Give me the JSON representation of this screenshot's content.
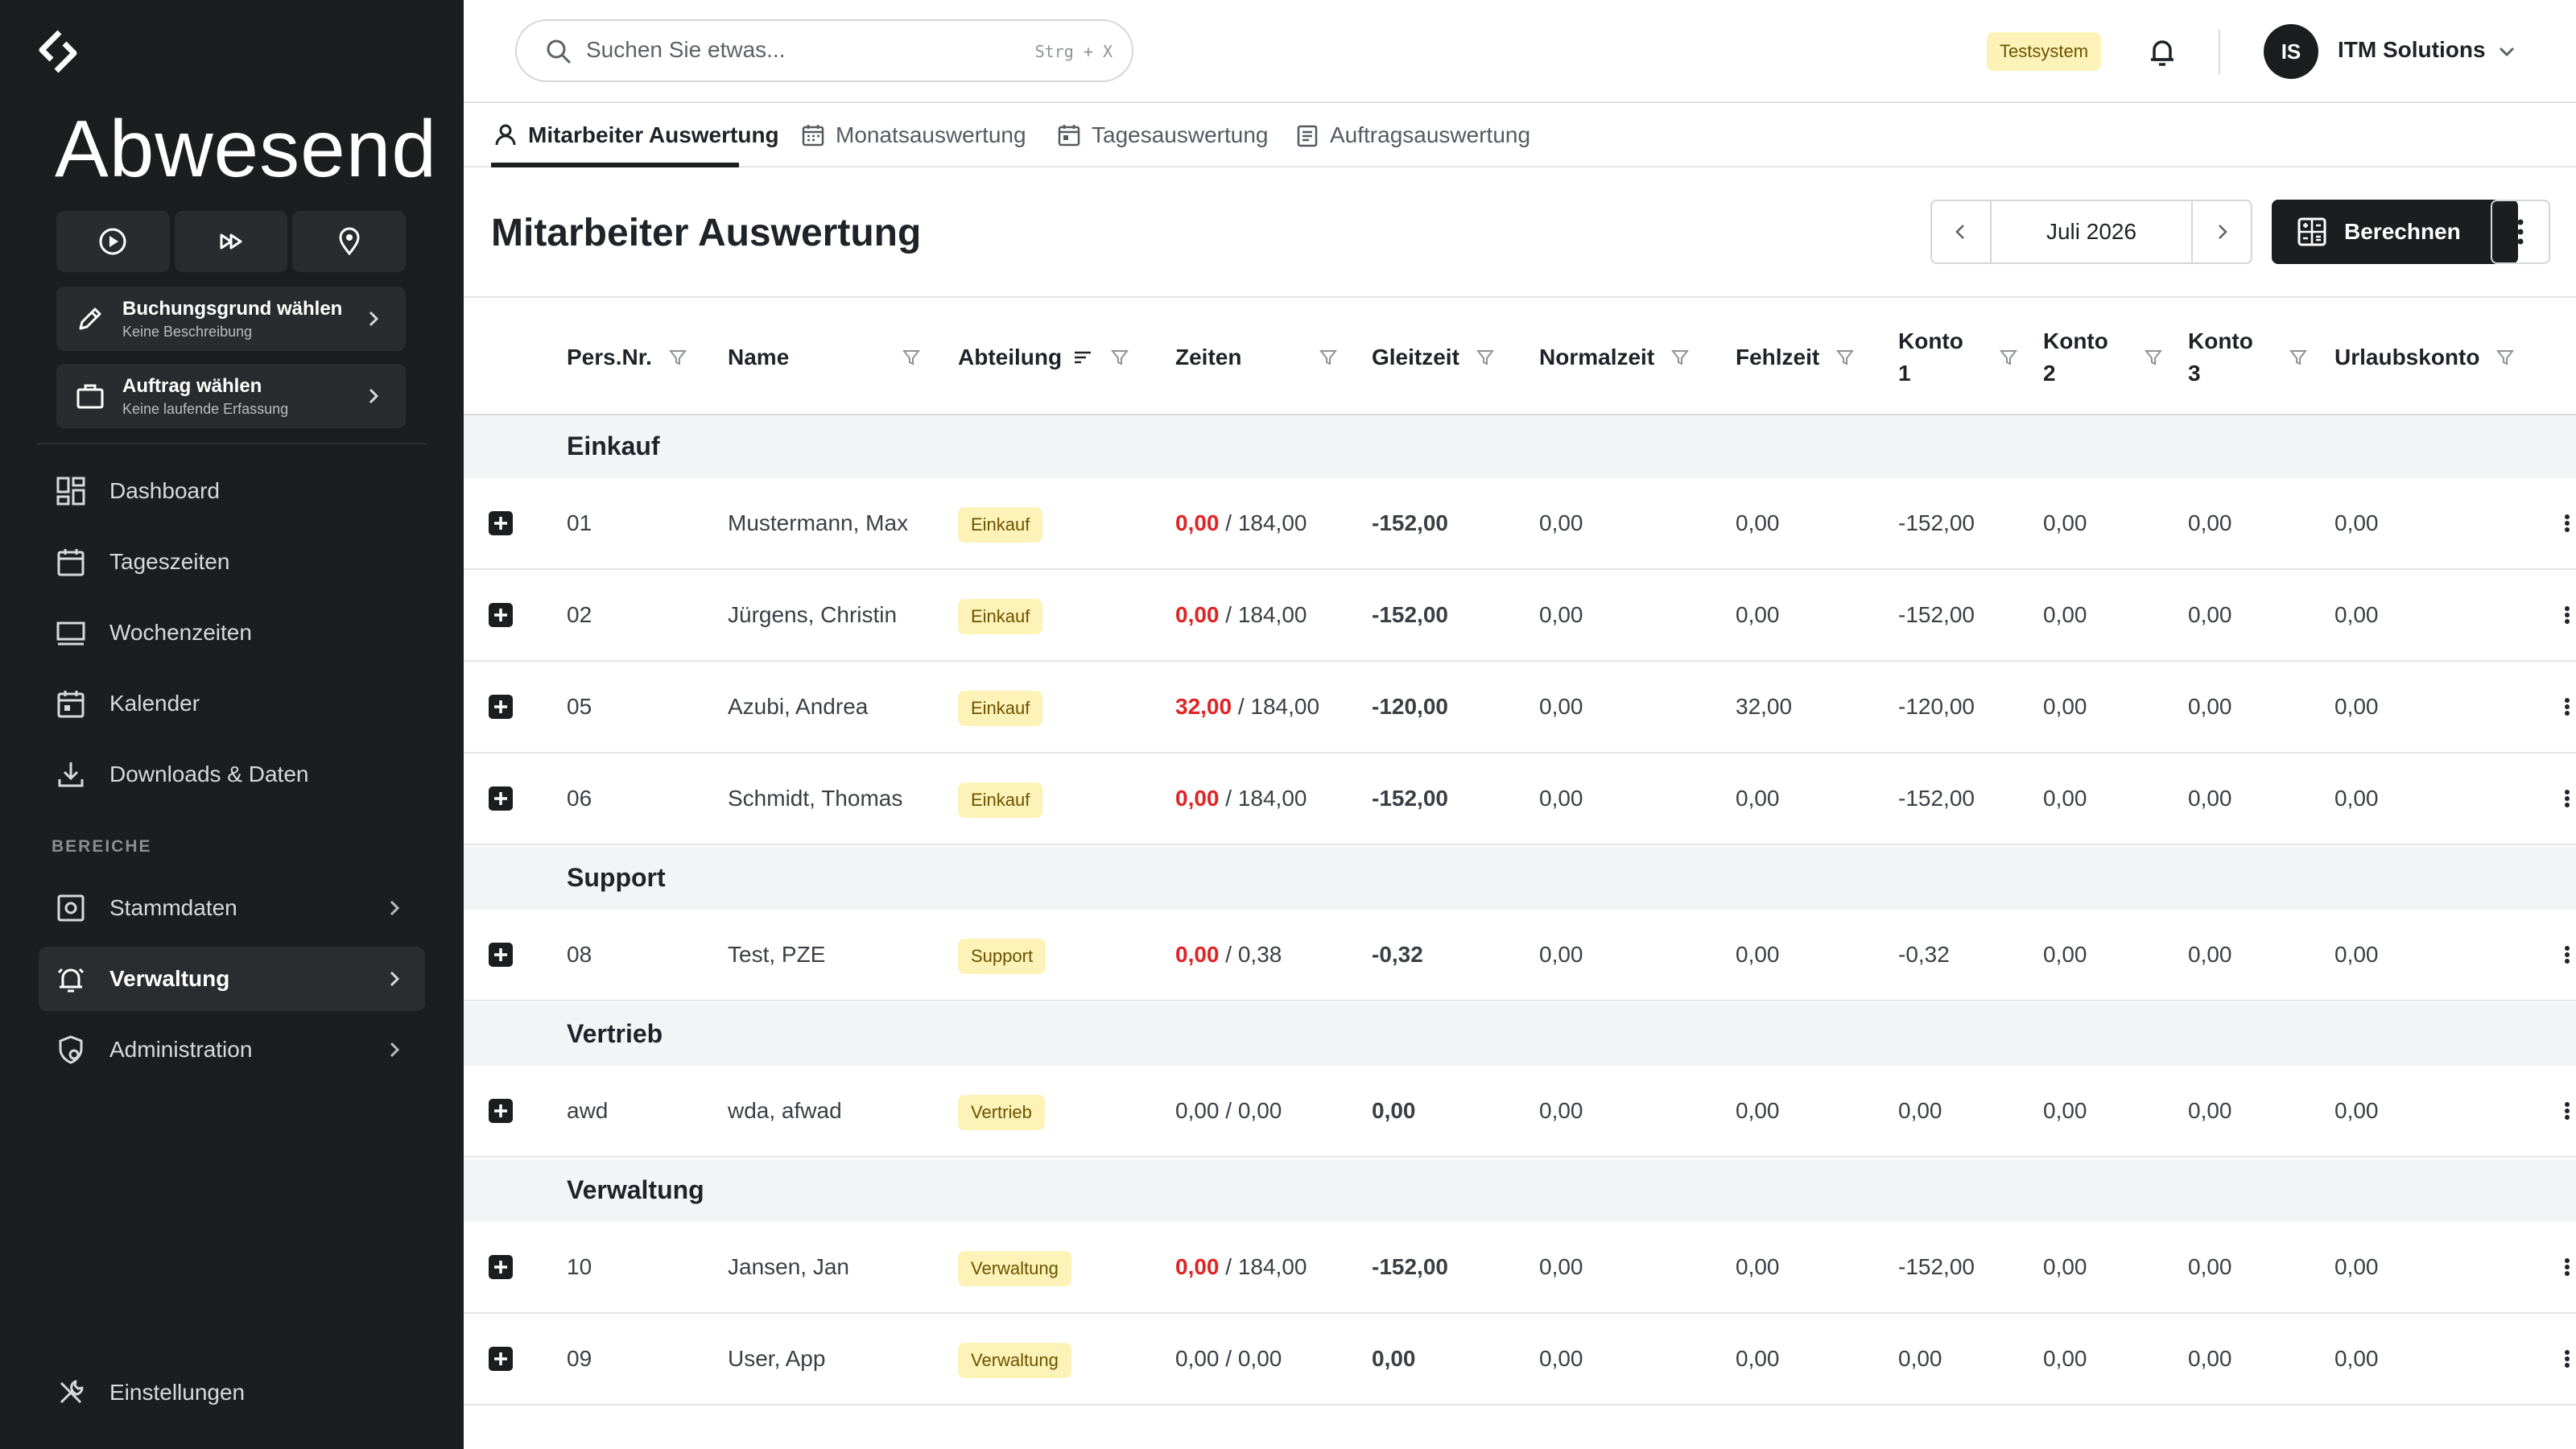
{
  "app": {
    "brand": "Abwesend",
    "quick_actions": [
      "play-icon",
      "fast-forward-icon",
      "location-pin-icon"
    ],
    "booking_reason": {
      "title": "Buchungsgrund wählen",
      "subtitle": "Keine Beschreibung"
    },
    "order": {
      "title": "Auftrag wählen",
      "subtitle": "Keine laufende Erfassung"
    }
  },
  "sidebar": {
    "items": [
      {
        "label": "Dashboard",
        "icon": "dashboard-icon"
      },
      {
        "label": "Tageszeiten",
        "icon": "calendar-icon"
      },
      {
        "label": "Wochenzeiten",
        "icon": "week-icon"
      },
      {
        "label": "Kalender",
        "icon": "calendar-event-icon"
      },
      {
        "label": "Downloads & Daten",
        "icon": "download-icon"
      }
    ],
    "section_label": "BEREICHE",
    "sections": [
      {
        "label": "Stammdaten",
        "icon": "settings-box-icon",
        "active": false
      },
      {
        "label": "Verwaltung",
        "icon": "bell-ring-icon",
        "active": true
      },
      {
        "label": "Administration",
        "icon": "shield-gear-icon",
        "active": false
      }
    ],
    "settings_label": "Einstellungen"
  },
  "topbar": {
    "search_placeholder": "Suchen Sie etwas...",
    "search_shortcut": "Strg + X",
    "env_badge": "Testsystem",
    "avatar_initials": "IS",
    "account_name": "ITM Solutions"
  },
  "tabs": [
    {
      "label": "Mitarbeiter Auswertung",
      "active": true
    },
    {
      "label": "Monatsauswertung",
      "active": false
    },
    {
      "label": "Tagesauswertung",
      "active": false
    },
    {
      "label": "Auftragsauswertung",
      "active": false
    }
  ],
  "page": {
    "title": "Mitarbeiter Auswertung",
    "month": "Juli 2026",
    "calculate_label": "Berechnen"
  },
  "table": {
    "columns": {
      "pers_nr": "Pers.Nr.",
      "name": "Name",
      "abteilung": "Abteilung",
      "zeiten": "Zeiten",
      "gleitzeit": "Gleitzeit",
      "normalzeit": "Normalzeit",
      "fehlzeit": "Fehlzeit",
      "konto1_a": "Konto",
      "konto1_b": "1",
      "konto2_a": "Konto",
      "konto2_b": "2",
      "konto3_a": "Konto",
      "konto3_b": "3",
      "urlaubskonto": "Urlaubskonto"
    },
    "groups": [
      {
        "label": "Einkauf",
        "rows": [
          {
            "nr": "01",
            "name": "Mustermann, Max",
            "dept": "Einkauf",
            "ist": "0,00",
            "soll": " / 184,00",
            "ist_style": "neg",
            "gleit": "-152,00",
            "gleit_style": "neg",
            "normal": "0,00",
            "fehl": "0,00",
            "k1": "-152,00",
            "k2": "0,00",
            "k3": "0,00",
            "urlaub": "0,00"
          },
          {
            "nr": "02",
            "name": "Jürgens, Christin",
            "dept": "Einkauf",
            "ist": "0,00",
            "soll": " / 184,00",
            "ist_style": "neg",
            "gleit": "-152,00",
            "gleit_style": "neg",
            "normal": "0,00",
            "fehl": "0,00",
            "k1": "-152,00",
            "k2": "0,00",
            "k3": "0,00",
            "urlaub": "0,00"
          },
          {
            "nr": "05",
            "name": "Azubi, Andrea",
            "dept": "Einkauf",
            "ist": "32,00",
            "soll": " / 184,00",
            "ist_style": "neg",
            "gleit": "-120,00",
            "gleit_style": "neg",
            "normal": "0,00",
            "fehl": "32,00",
            "k1": "-120,00",
            "k2": "0,00",
            "k3": "0,00",
            "urlaub": "0,00"
          },
          {
            "nr": "06",
            "name": "Schmidt, Thomas",
            "dept": "Einkauf",
            "ist": "0,00",
            "soll": " / 184,00",
            "ist_style": "neg",
            "gleit": "-152,00",
            "gleit_style": "neg",
            "normal": "0,00",
            "fehl": "0,00",
            "k1": "-152,00",
            "k2": "0,00",
            "k3": "0,00",
            "urlaub": "0,00"
          }
        ]
      },
      {
        "label": "Support",
        "rows": [
          {
            "nr": "08",
            "name": "Test, PZE",
            "dept": "Support",
            "ist": "0,00",
            "soll": " / 0,38",
            "ist_style": "neg",
            "gleit": "-0,32",
            "gleit_style": "neg",
            "normal": "0,00",
            "fehl": "0,00",
            "k1": "-0,32",
            "k2": "0,00",
            "k3": "0,00",
            "urlaub": "0,00"
          }
        ]
      },
      {
        "label": "Vertrieb",
        "rows": [
          {
            "nr": "awd",
            "name": "wda, afwad",
            "dept": "Vertrieb",
            "ist": "0,00",
            "soll": " / 0,00",
            "ist_style": "plain",
            "gleit": "0,00",
            "gleit_style": "pos",
            "normal": "0,00",
            "fehl": "0,00",
            "k1": "0,00",
            "k2": "0,00",
            "k3": "0,00",
            "urlaub": "0,00"
          }
        ]
      },
      {
        "label": "Verwaltung",
        "rows": [
          {
            "nr": "10",
            "name": "Jansen, Jan",
            "dept": "Verwaltung",
            "ist": "0,00",
            "soll": " / 184,00",
            "ist_style": "neg",
            "gleit": "-152,00",
            "gleit_style": "neg",
            "normal": "0,00",
            "fehl": "0,00",
            "k1": "-152,00",
            "k2": "0,00",
            "k3": "0,00",
            "urlaub": "0,00"
          },
          {
            "nr": "09",
            "name": "User, App",
            "dept": "Verwaltung",
            "ist": "0,00",
            "soll": " / 0,00",
            "ist_style": "plain",
            "gleit": "0,00",
            "gleit_style": "pos",
            "normal": "0,00",
            "fehl": "0,00",
            "k1": "0,00",
            "k2": "0,00",
            "k3": "0,00",
            "urlaub": "0,00"
          }
        ]
      }
    ]
  },
  "colors": {
    "sidebar_bg": "#1c1d1f",
    "negative": "#e02424",
    "positive": "#16a34a",
    "badge_bg": "#fdf3b8",
    "badge_text": "#6b5300"
  }
}
